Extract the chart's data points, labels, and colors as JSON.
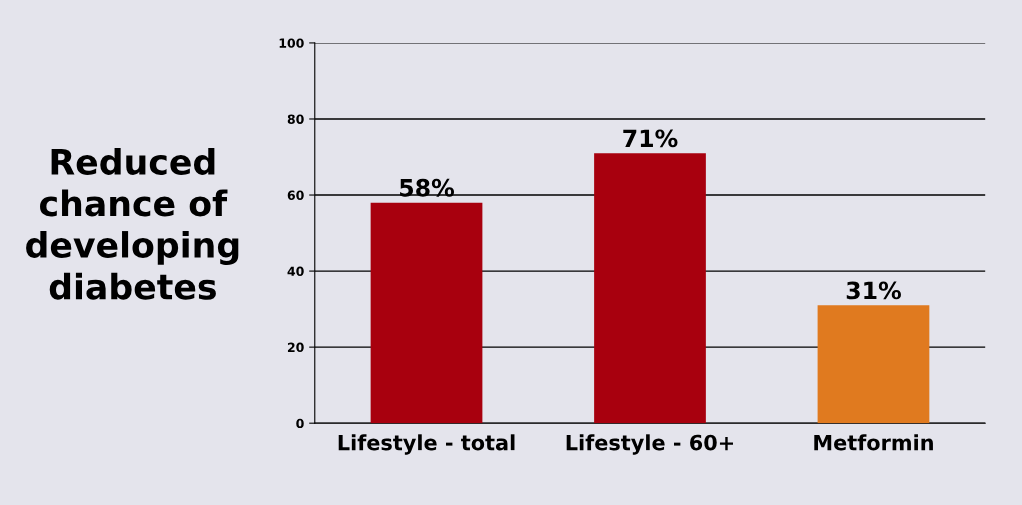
{
  "chart_data": {
    "type": "bar",
    "ylabel": "Reduced\nchance of\ndeveloping\ndiabetes",
    "categories": [
      "Lifestyle - total",
      "Lifestyle - 60+",
      "Metformin"
    ],
    "values": [
      58,
      71,
      31
    ],
    "colors": [
      "#a8000e",
      "#a8000e",
      "#e07a1f"
    ],
    "value_labels": [
      "58%",
      "71%",
      "31%"
    ],
    "ylim": [
      0,
      100
    ],
    "yticks": [
      0,
      20,
      40,
      60,
      80,
      100
    ],
    "grid": "y"
  }
}
